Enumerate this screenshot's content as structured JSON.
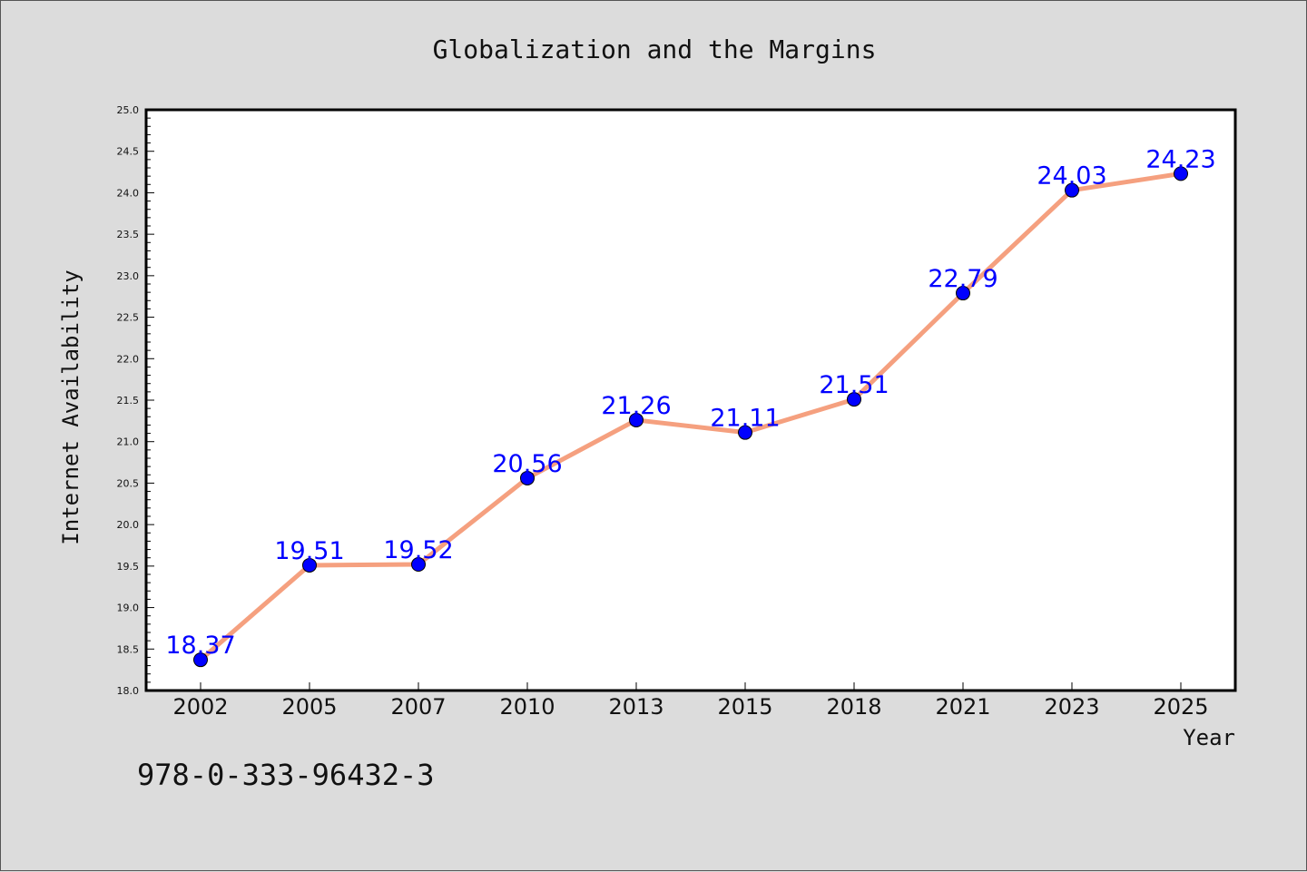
{
  "chart_data": {
    "type": "line",
    "title": "Globalization and the Margins",
    "xlabel": "Year",
    "ylabel": "Internet Availability",
    "categories": [
      "2002",
      "2005",
      "2007",
      "2010",
      "2013",
      "2015",
      "2018",
      "2021",
      "2023",
      "2025"
    ],
    "series": [
      {
        "values": [
          18.37,
          19.51,
          19.52,
          20.56,
          21.26,
          21.11,
          21.51,
          22.79,
          24.03,
          24.23
        ],
        "data_labels": [
          "18.37",
          "19.51",
          "19.52",
          "20.56",
          "21.26",
          "21.11",
          "21.51",
          "22.79",
          "24.03",
          "24.23"
        ],
        "line_color": "#f5a07f",
        "marker_color": "#0000ff"
      }
    ],
    "ylim": [
      18.0,
      25.0
    ],
    "ytick_labels": [
      "18.0",
      "18.5",
      "19.0",
      "19.5",
      "20.0",
      "20.5",
      "21.0",
      "21.5",
      "22.0",
      "22.5",
      "23.0",
      "23.5",
      "24.0",
      "24.5",
      "25.0"
    ],
    "grid": false,
    "legend": "none"
  },
  "footer": {
    "isbn": "978-0-333-96432-3"
  },
  "colors": {
    "background": "#dcdcdc",
    "plot_background": "#ffffff",
    "line": "#f5a07f",
    "marker": "#0000ff",
    "data_label": "#0000ff"
  }
}
